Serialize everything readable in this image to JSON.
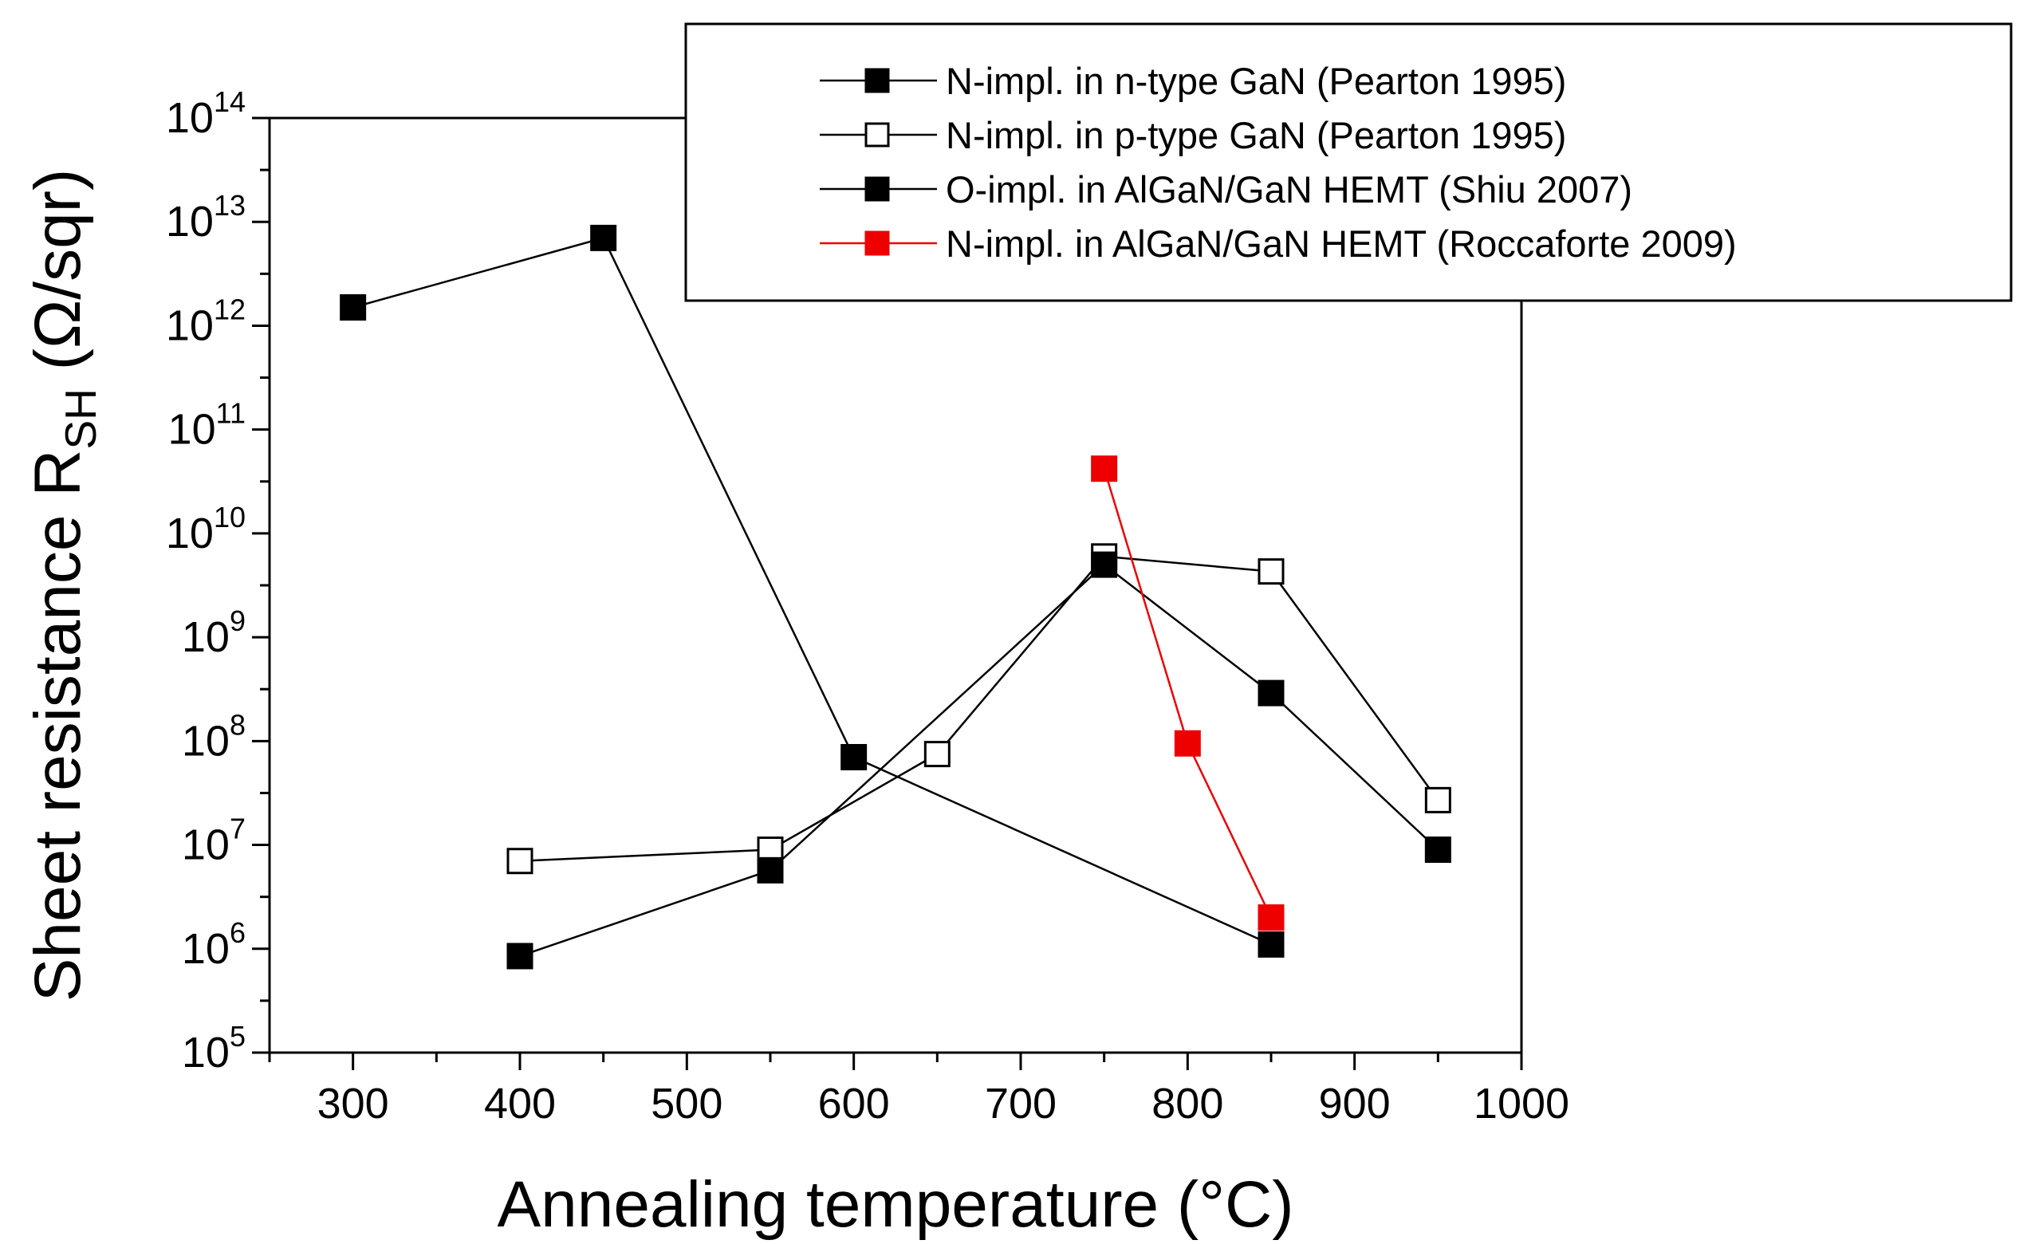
{
  "chart_data": {
    "type": "line",
    "title": "",
    "xlabel": "Annealing temperature (°C)",
    "ylabel": {
      "prefix": "Sheet resistance R",
      "subscript": "SH",
      "unit": "(Ω/sqr)"
    },
    "xlim": [
      250,
      1000
    ],
    "ylim_log10": [
      5,
      14
    ],
    "yscale": "log",
    "x_ticks": [
      300,
      400,
      500,
      600,
      700,
      800,
      900,
      1000
    ],
    "y_ticks": [
      {
        "base": "10",
        "exp": "5"
      },
      {
        "base": "10",
        "exp": "6"
      },
      {
        "base": "10",
        "exp": "7"
      },
      {
        "base": "10",
        "exp": "8"
      },
      {
        "base": "10",
        "exp": "9"
      },
      {
        "base": "10",
        "exp": "10"
      },
      {
        "base": "10",
        "exp": "11"
      },
      {
        "base": "10",
        "exp": "12"
      },
      {
        "base": "10",
        "exp": "13"
      },
      {
        "base": "10",
        "exp": "14"
      }
    ],
    "legend_position": "top-right",
    "series": [
      {
        "name": "N-impl. in n-type GaN (Pearton 1995)",
        "color": "#000000",
        "marker": "square-filled",
        "points": [
          [
            300,
            1500000000000.0
          ],
          [
            450,
            7000000000000.0
          ],
          [
            600,
            70000000.0
          ],
          [
            850,
            1100000.0
          ]
        ]
      },
      {
        "name": "N-impl. in p-type GaN (Pearton 1995)",
        "color": "#000000",
        "marker": "square-open",
        "points": [
          [
            400,
            7000000.0
          ],
          [
            550,
            9000000.0
          ],
          [
            650,
            75000000.0
          ],
          [
            750,
            6000000000.0
          ],
          [
            850,
            4300000000.0
          ],
          [
            950,
            27000000.0
          ]
        ]
      },
      {
        "name": "O-impl. in AlGaN/GaN HEMT (Shiu 2007)",
        "color": "#000000",
        "marker": "square-filled",
        "points": [
          [
            400,
            850000.0
          ],
          [
            550,
            5700000.0
          ],
          [
            750,
            5000000000.0
          ],
          [
            850,
            290000000.0
          ],
          [
            950,
            9000000.0
          ]
        ]
      },
      {
        "name": "N-impl. in AlGaN/GaN HEMT (Roccaforte 2009)",
        "color": "#ee0000",
        "marker": "square-filled",
        "points": [
          [
            750,
            42000000000.0
          ],
          [
            800,
            95000000.0
          ],
          [
            850,
            2000000.0
          ]
        ]
      }
    ]
  }
}
